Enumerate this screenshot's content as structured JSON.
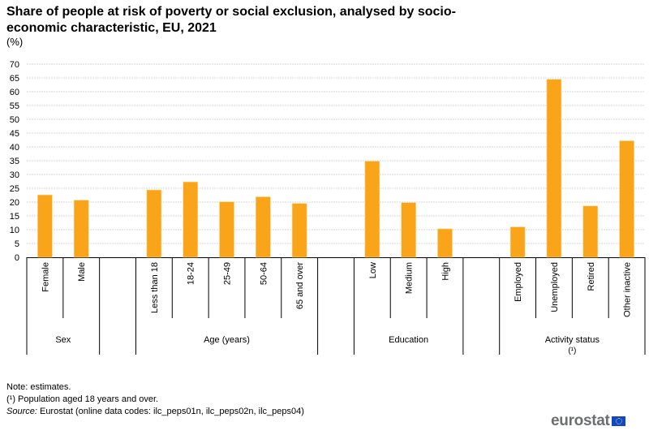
{
  "header": {
    "title": "Share of people at risk of poverty or social exclusion, analysed by socio-economic characteristic, EU, 2021",
    "unit": "(%)"
  },
  "chart_data": {
    "type": "bar",
    "title": "Share of people at risk of poverty or social exclusion, analysed by socio-economic characteristic, EU, 2021",
    "xlabel": "",
    "ylabel": "(%)",
    "ylim": [
      0,
      70
    ],
    "yticks": [
      0,
      5,
      10,
      15,
      20,
      25,
      30,
      35,
      40,
      45,
      50,
      55,
      60,
      65,
      70
    ],
    "grid": true,
    "bar_color": "#faa519",
    "groups": [
      {
        "name": "Sex",
        "note": "",
        "categories": [
          "Female",
          "Male"
        ],
        "values": [
          22.6,
          20.7
        ]
      },
      {
        "name": "Age (years)",
        "note": "",
        "categories": [
          "Less than 18",
          "18-24",
          "25-49",
          "50-64",
          "65 and over"
        ],
        "values": [
          24.4,
          27.3,
          20.1,
          21.9,
          19.5
        ]
      },
      {
        "name": "Education",
        "note": "",
        "categories": [
          "Low",
          "Medium",
          "High"
        ],
        "values": [
          34.8,
          19.8,
          10.3
        ]
      },
      {
        "name": "Activity status",
        "note": "(¹)",
        "categories": [
          "Employed",
          "Unemployed",
          "Retired",
          "Other inactive"
        ],
        "values": [
          11.0,
          64.5,
          18.6,
          42.2
        ]
      }
    ]
  },
  "footer": {
    "note": "Note: estimates.",
    "footnote": "(¹) Population aged 18 years and over.",
    "source_label": "Source:",
    "source_text": " Eurostat (online data codes: ilc_peps01n, ilc_peps02n, ilc_peps04)"
  },
  "logo": {
    "text": "eurostat",
    "flag_icon": "eu-flag-icon"
  }
}
